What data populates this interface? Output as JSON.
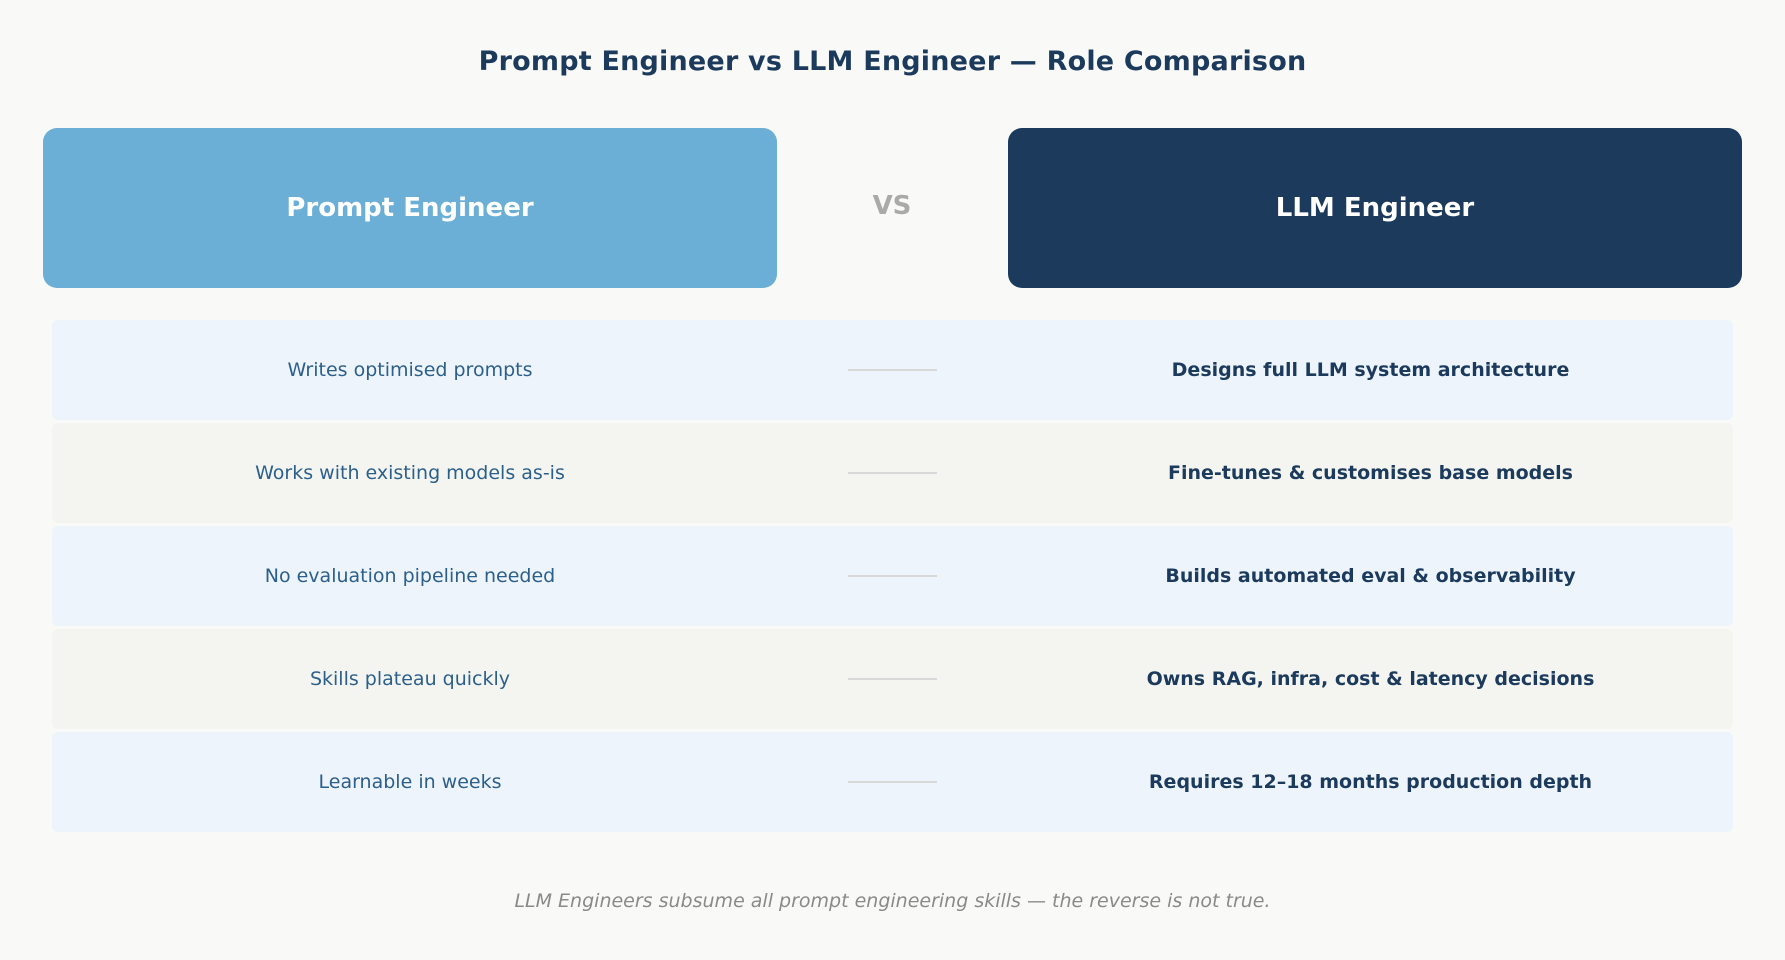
{
  "title": "Prompt Engineer vs LLM Engineer — Role Comparison",
  "header": {
    "left_label": "Prompt Engineer",
    "vs_label": "VS",
    "right_label": "LLM Engineer"
  },
  "rows": [
    {
      "left": "Writes optimised prompts",
      "right": "Designs full LLM system architecture"
    },
    {
      "left": "Works with existing models as-is",
      "right": "Fine-tunes & customises base models"
    },
    {
      "left": "No evaluation pipeline needed",
      "right": "Builds automated eval & observability"
    },
    {
      "left": "Skills plateau quickly",
      "right": "Owns RAG, infra, cost & latency decisions"
    },
    {
      "left": "Learnable in weeks",
      "right": "Requires 12–18 months production depth"
    }
  ],
  "footer": "LLM Engineers subsume all prompt engineering skills — the reverse is not true.",
  "colors": {
    "prompt_engineer": "#6BAED6",
    "llm_engineer": "#1B3A5C",
    "row_tint_a": "#EDF4FB",
    "row_tint_b": "#F4F5F0"
  }
}
